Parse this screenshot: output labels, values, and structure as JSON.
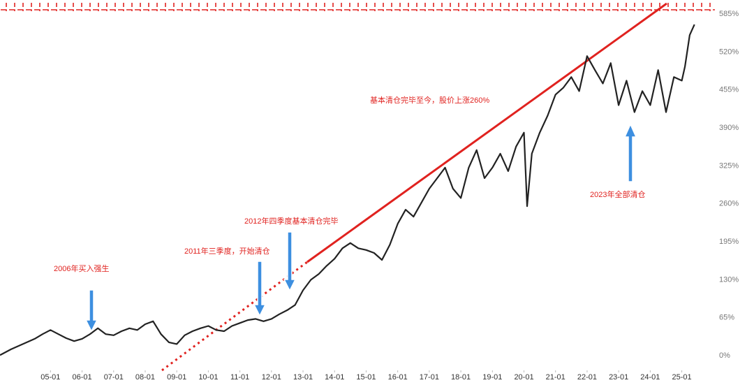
{
  "chart_data": {
    "type": "line",
    "annotations": [
      "2006年买入强生",
      "2011年三季度，开始清仓",
      "2012年四季度基本清仓完毕",
      "基本清仓完毕至今，股价上涨260%",
      "2023年全部清仓"
    ],
    "x": [
      2003.4,
      2003.75,
      2004.0,
      2004.25,
      2004.5,
      2004.75,
      2005.0,
      2005.25,
      2005.5,
      2005.75,
      2006.0,
      2006.25,
      2006.5,
      2006.75,
      2007.0,
      2007.25,
      2007.5,
      2007.75,
      2008.0,
      2008.25,
      2008.5,
      2008.75,
      2009.0,
      2009.25,
      2009.5,
      2009.75,
      2010.0,
      2010.25,
      2010.5,
      2010.75,
      2011.0,
      2011.25,
      2011.5,
      2011.75,
      2012.0,
      2012.25,
      2012.5,
      2012.75,
      2013.0,
      2013.25,
      2013.5,
      2013.75,
      2014.0,
      2014.25,
      2014.5,
      2014.75,
      2015.0,
      2015.25,
      2015.5,
      2015.75,
      2016.0,
      2016.25,
      2016.5,
      2016.75,
      2017.0,
      2017.25,
      2017.5,
      2017.75,
      2018.0,
      2018.25,
      2018.5,
      2018.75,
      2019.0,
      2019.25,
      2019.5,
      2019.75,
      2020.0,
      2020.1,
      2020.25,
      2020.5,
      2020.75,
      2021.0,
      2021.25,
      2021.5,
      2021.75,
      2022.0,
      2022.25,
      2022.5,
      2022.75,
      2023.0,
      2023.25,
      2023.5,
      2023.75,
      2024.0,
      2024.25,
      2024.5,
      2024.75,
      2025.0,
      2025.1,
      2025.25,
      2025.4
    ],
    "series": [
      {
        "color": "#222222",
        "values": [
          1,
          11,
          17,
          23,
          29,
          37,
          44,
          37,
          30,
          25,
          29,
          37,
          47,
          37,
          35,
          42,
          47,
          44,
          54,
          59,
          37,
          23,
          20,
          35,
          42,
          47,
          51,
          44,
          42,
          51,
          56,
          61,
          63,
          59,
          63,
          71,
          78,
          87,
          112,
          130,
          140,
          154,
          166,
          184,
          193,
          184,
          181,
          176,
          164,
          190,
          226,
          250,
          238,
          262,
          286,
          304,
          322,
          286,
          270,
          322,
          352,
          304,
          322,
          346,
          316,
          358,
          382,
          256,
          346,
          382,
          411,
          447,
          459,
          477,
          453,
          513,
          489,
          466,
          501,
          429,
          471,
          417,
          453,
          429,
          489,
          417,
          477,
          471,
          495,
          549,
          567
        ]
      }
    ],
    "xlim": [
      2003.4,
      2025.85
    ],
    "xticks": [
      {
        "value": 2005,
        "label": "05-01"
      },
      {
        "value": 2006,
        "label": "06-01"
      },
      {
        "value": 2007,
        "label": "07-01"
      },
      {
        "value": 2008,
        "label": "08-01"
      },
      {
        "value": 2009,
        "label": "09-01"
      },
      {
        "value": 2010,
        "label": "10-01"
      },
      {
        "value": 2011,
        "label": "11-01"
      },
      {
        "value": 2012,
        "label": "12-01"
      },
      {
        "value": 2013,
        "label": "13-01"
      },
      {
        "value": 2014,
        "label": "14-01"
      },
      {
        "value": 2015,
        "label": "15-01"
      },
      {
        "value": 2016,
        "label": "16-01"
      },
      {
        "value": 2017,
        "label": "17-01"
      },
      {
        "value": 2018,
        "label": "18-01"
      },
      {
        "value": 2019,
        "label": "19-01"
      },
      {
        "value": 2020,
        "label": "20-01"
      },
      {
        "value": 2021,
        "label": "21-01"
      },
      {
        "value": 2022,
        "label": "22-01"
      },
      {
        "value": 2023,
        "label": "23-01"
      },
      {
        "value": 2024,
        "label": "24-01"
      },
      {
        "value": 2025,
        "label": "25-01"
      }
    ],
    "ylim": [
      -25,
      609
    ],
    "yticks": [
      {
        "value": 0,
        "label": "0%"
      },
      {
        "value": 65,
        "label": "65%"
      },
      {
        "value": 130,
        "label": "130%"
      },
      {
        "value": 195,
        "label": "195%"
      },
      {
        "value": 260,
        "label": "260%"
      },
      {
        "value": 325,
        "label": "325%"
      },
      {
        "value": 390,
        "label": "390%"
      },
      {
        "value": 455,
        "label": "455%"
      },
      {
        "value": 520,
        "label": "520%"
      },
      {
        "value": 585,
        "label": "585%"
      }
    ]
  }
}
